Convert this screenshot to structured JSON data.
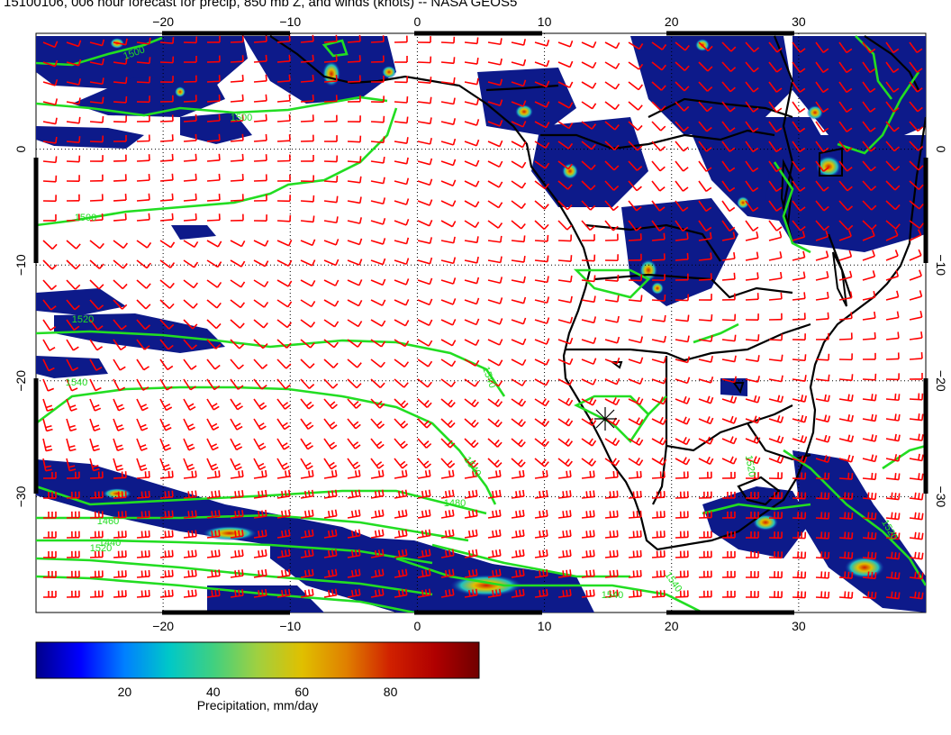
{
  "title": "15100106, 006 hour forecast for precip, 850 mb Z, and winds (knots) -- NASA GEOS5",
  "map": {
    "lon_range": [
      -30,
      40
    ],
    "lat_range": [
      -40,
      10
    ],
    "lon_ticks": [
      {
        "value": -20,
        "label": "−20"
      },
      {
        "value": -10,
        "label": "−10"
      },
      {
        "value": 0,
        "label": "0"
      },
      {
        "value": 10,
        "label": "10"
      },
      {
        "value": 20,
        "label": "20"
      },
      {
        "value": 30,
        "label": "30"
      }
    ],
    "lat_ticks": [
      {
        "value": 0,
        "label": "0"
      },
      {
        "value": -10,
        "label": "−10"
      },
      {
        "value": -20,
        "label": "−20"
      },
      {
        "value": -30,
        "label": "−30"
      }
    ],
    "height_contour_labels": [
      "1500",
      "1500",
      "1500",
      "1520",
      "1540",
      "1540",
      "1540",
      "1480",
      "1460",
      "1440",
      "1520",
      "1540",
      "1540",
      "1520",
      "1520"
    ],
    "colors": {
      "wind_barbs": "#ff0000",
      "height_contours": "#22dd22",
      "coastlines": "#000000",
      "grid": "#000000"
    }
  },
  "colorbar": {
    "ticks": [
      "20",
      "40",
      "60",
      "80"
    ],
    "tick_values": [
      20,
      40,
      60,
      80
    ],
    "range": [
      0,
      100
    ],
    "label": "Precipitation, mm/day",
    "colors": [
      "#00008b",
      "#0000ff",
      "#0080ff",
      "#00c8c8",
      "#40d080",
      "#a0d040",
      "#e0c000",
      "#e08000",
      "#d02000",
      "#b00000",
      "#700000"
    ]
  }
}
